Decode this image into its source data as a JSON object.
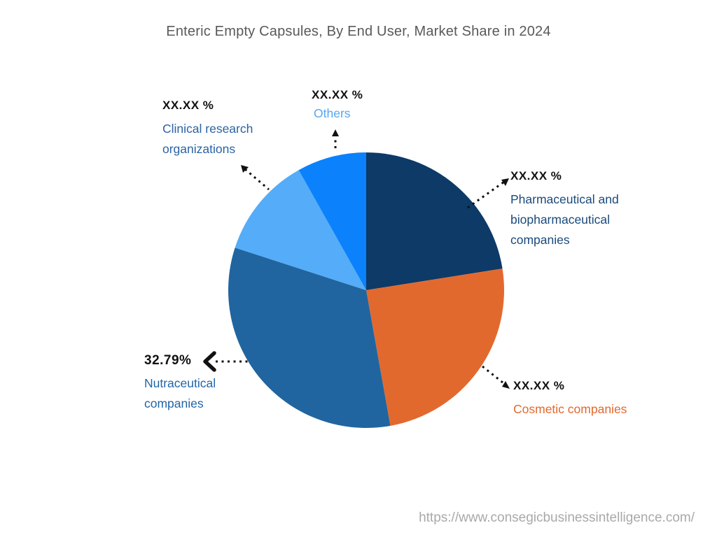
{
  "title": "Enteric Empty Capsules, By End User, Market Share in 2024",
  "footer_url": "https://www.consegicbusinessintelligence.com/",
  "colors": {
    "title_text": "#595959",
    "percent_text": "#111111",
    "leader_line": "#111111",
    "footer_text": "#a9a9a9",
    "background": "#ffffff"
  },
  "chart_data": {
    "type": "pie",
    "title": "Enteric Empty Capsules, By End User, Market Share in 2024",
    "direction": "clockwise",
    "start_angle": "12-oclock",
    "legend_position": "none",
    "annotation_style": "callout labels with dotted leader lines and arrowheads",
    "unit": "%",
    "slices": [
      {
        "label": "Pharmaceutical and biopharmaceutical companies",
        "display_value": "XX.XX %",
        "value_pct": 22.5,
        "color": "#0d3a67",
        "label_color": "#1a4a7c"
      },
      {
        "label": "Cosmetic companies",
        "display_value": "XX.XX %",
        "value_pct": 24.7,
        "color": "#e2692e",
        "label_color": "#e2692e"
      },
      {
        "label": "Nutraceutical companies",
        "display_value": "32.79%",
        "value_pct": 32.79,
        "color": "#2065a0",
        "label_color": "#2166a8"
      },
      {
        "label": "Clinical research organizations",
        "display_value": "XX.XX %",
        "value_pct": 11.87,
        "color": "#55acf8",
        "label_color": "#2b63a3"
      },
      {
        "label": "Others",
        "display_value": "XX.XX %",
        "value_pct": 8.14,
        "color": "#0b81fc",
        "label_color": "#54a7f2"
      }
    ]
  }
}
